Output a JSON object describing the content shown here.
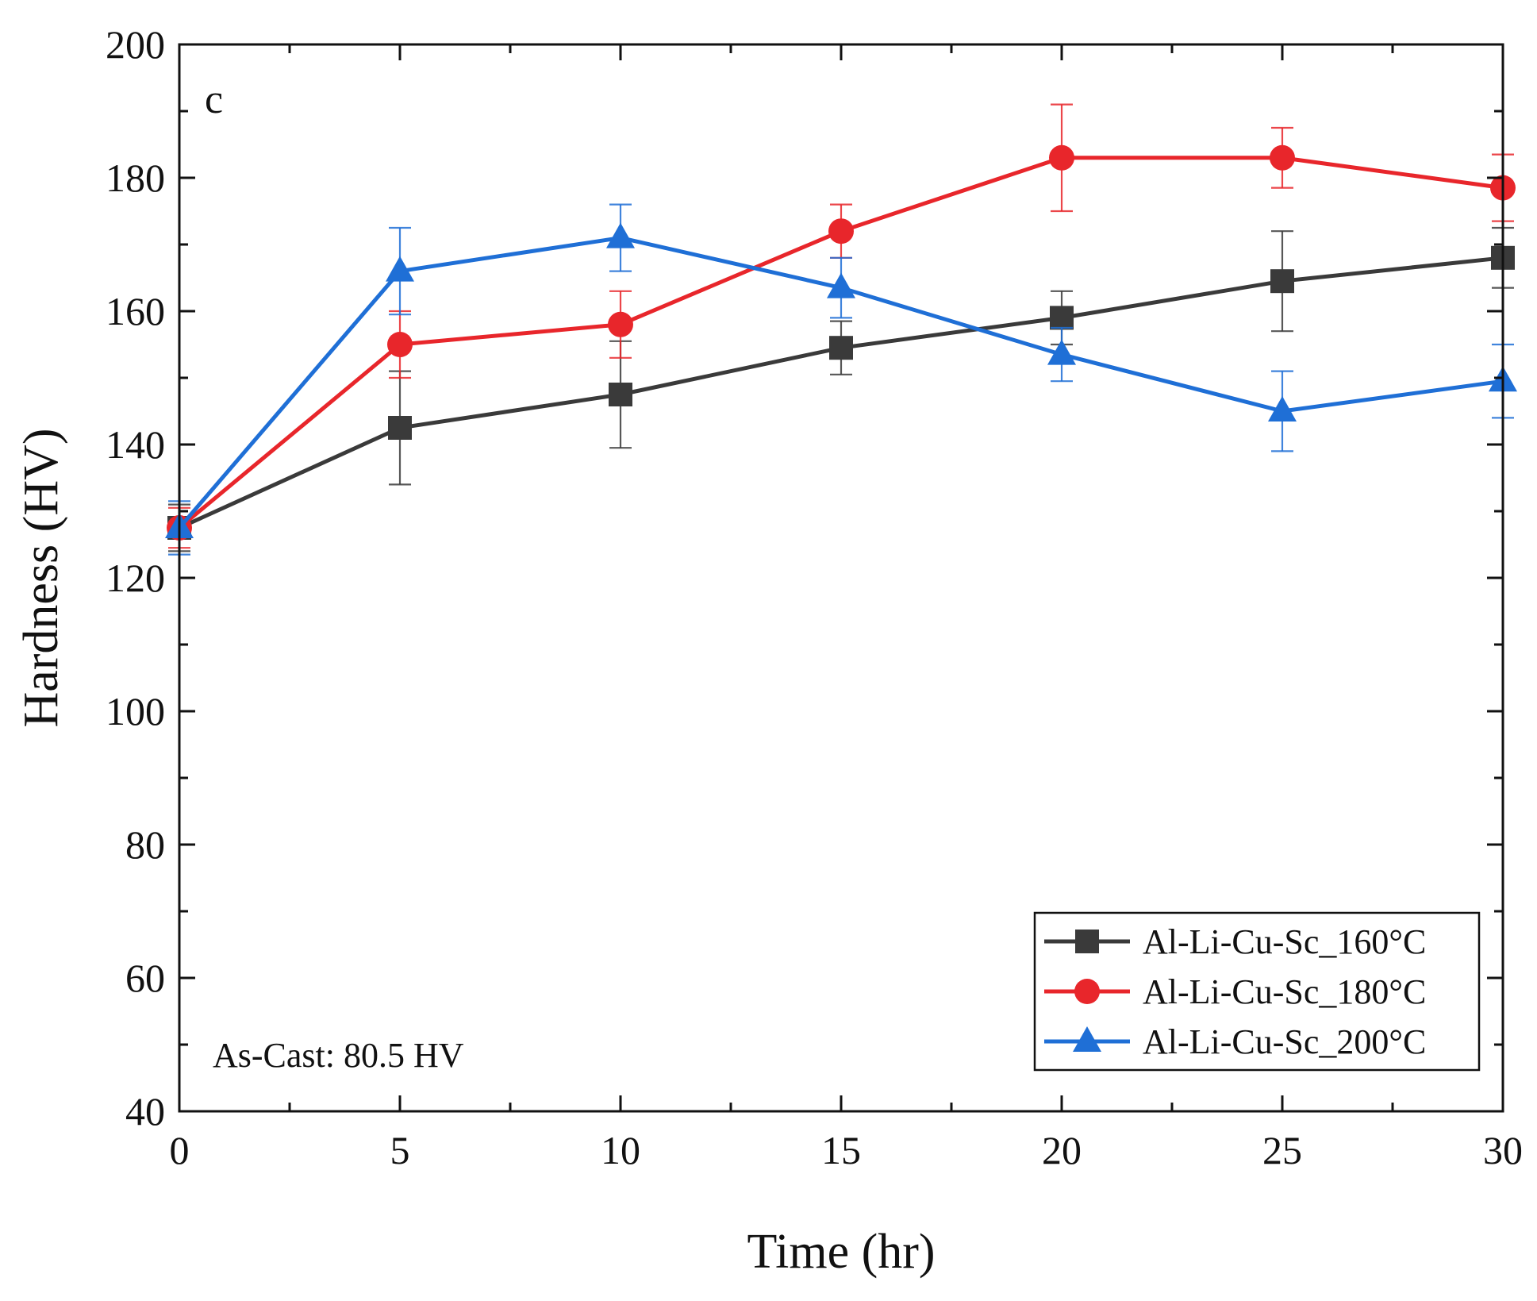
{
  "chart_data": {
    "type": "line",
    "title": "",
    "panel_label": "c",
    "xlabel": "Time (hr)",
    "ylabel": "Hardness (HV)",
    "xlim": [
      0,
      30
    ],
    "ylim": [
      40,
      200
    ],
    "x_ticks": [
      0,
      5,
      10,
      15,
      20,
      25,
      30
    ],
    "y_ticks": [
      40,
      60,
      80,
      100,
      120,
      140,
      160,
      180,
      200
    ],
    "grid": false,
    "legend_position": "bottom-right",
    "annotation": "As-Cast: 80.5 HV",
    "x": [
      0,
      5,
      10,
      15,
      20,
      25,
      30
    ],
    "series": [
      {
        "name": "Al-Li-Cu-Sc_160°C",
        "color": "#3a3a3a",
        "marker": "square",
        "values": [
          127.5,
          142.5,
          147.5,
          154.5,
          159.0,
          164.5,
          168.0
        ],
        "errors": [
          3.5,
          8.5,
          8.0,
          4.0,
          4.0,
          7.5,
          4.5
        ]
      },
      {
        "name": "Al-Li-Cu-Sc_180°C",
        "color": "#e8262b",
        "marker": "circle",
        "values": [
          127.5,
          155.0,
          158.0,
          172.0,
          183.0,
          183.0,
          178.5
        ],
        "errors": [
          3.0,
          5.0,
          5.0,
          4.0,
          8.0,
          4.5,
          5.0
        ]
      },
      {
        "name": "Al-Li-Cu-Sc_200°C",
        "color": "#1f6fd6",
        "marker": "triangle",
        "values": [
          127.5,
          166.0,
          171.0,
          163.5,
          153.5,
          145.0,
          149.5
        ],
        "errors": [
          4.0,
          6.5,
          5.0,
          4.5,
          4.0,
          6.0,
          5.5
        ]
      }
    ]
  }
}
